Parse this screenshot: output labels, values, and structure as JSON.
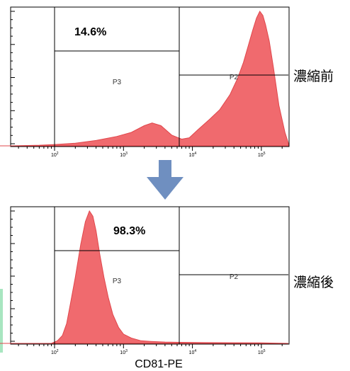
{
  "chart_data": [
    {
      "type": "area",
      "sample_label": "濃縮前",
      "x_scale": "log",
      "xlim": [
        16,
        300000
      ],
      "x_ticks": [
        {
          "value": 100,
          "base": "10",
          "exp": "2"
        },
        {
          "value": 1000,
          "base": "10",
          "exp": "3"
        },
        {
          "value": 10000,
          "base": "10",
          "exp": "4"
        },
        {
          "value": 100000,
          "base": "10",
          "exp": "5"
        }
      ],
      "ylim": [
        0,
        1
      ],
      "series": [
        {
          "x": [
            16,
            60,
            100,
            200,
            400,
            800,
            1300,
            2000,
            2600,
            3500,
            5000,
            7000,
            9000,
            12000,
            18000,
            25000,
            35000,
            45000,
            55000,
            65000,
            75000,
            85000,
            95000,
            105000,
            115000,
            130000,
            150000,
            180000,
            220000,
            260000,
            300000
          ],
          "y": [
            0,
            0.005,
            0.01,
            0.02,
            0.04,
            0.07,
            0.1,
            0.15,
            0.17,
            0.15,
            0.08,
            0.05,
            0.06,
            0.12,
            0.2,
            0.27,
            0.38,
            0.5,
            0.62,
            0.75,
            0.86,
            0.95,
            1.0,
            0.97,
            0.9,
            0.78,
            0.58,
            0.3,
            0.1,
            0.02,
            0
          ]
        }
      ],
      "gates": [
        {
          "name": "P3",
          "percent": "14.6%"
        },
        {
          "name": "P2"
        }
      ]
    },
    {
      "type": "area",
      "sample_label": "濃縮後",
      "xlabel": "CD81-PE",
      "x_scale": "log",
      "xlim": [
        16,
        300000
      ],
      "x_ticks": [
        {
          "value": 100,
          "base": "10",
          "exp": "2"
        },
        {
          "value": 1000,
          "base": "10",
          "exp": "3"
        },
        {
          "value": 10000,
          "base": "10",
          "exp": "4"
        },
        {
          "value": 100000,
          "base": "10",
          "exp": "5"
        }
      ],
      "ylim": [
        0,
        1
      ],
      "series": [
        {
          "x": [
            16,
            90,
            110,
            130,
            150,
            170,
            200,
            240,
            280,
            320,
            360,
            400,
            450,
            520,
            600,
            700,
            850,
            1000,
            1300,
            1800,
            2500,
            4000,
            7000,
            15000,
            40000,
            100000,
            300000
          ],
          "y": [
            0,
            0,
            0.02,
            0.06,
            0.15,
            0.3,
            0.5,
            0.75,
            0.92,
            1.0,
            0.96,
            0.85,
            0.68,
            0.5,
            0.35,
            0.22,
            0.12,
            0.07,
            0.04,
            0.02,
            0.015,
            0.01,
            0.008,
            0.006,
            0.005,
            0.004,
            0
          ]
        }
      ],
      "gates": [
        {
          "name": "P3",
          "percent": "98.3%"
        },
        {
          "name": "P2"
        }
      ]
    }
  ],
  "colors": {
    "histogram_fill": "#f06a6e",
    "histogram_stroke": "#e0474c",
    "arrow": "#6f8fc0",
    "accent_bar": "#a8e6c0"
  },
  "icons": {
    "arrow": "down-arrow-icon"
  }
}
